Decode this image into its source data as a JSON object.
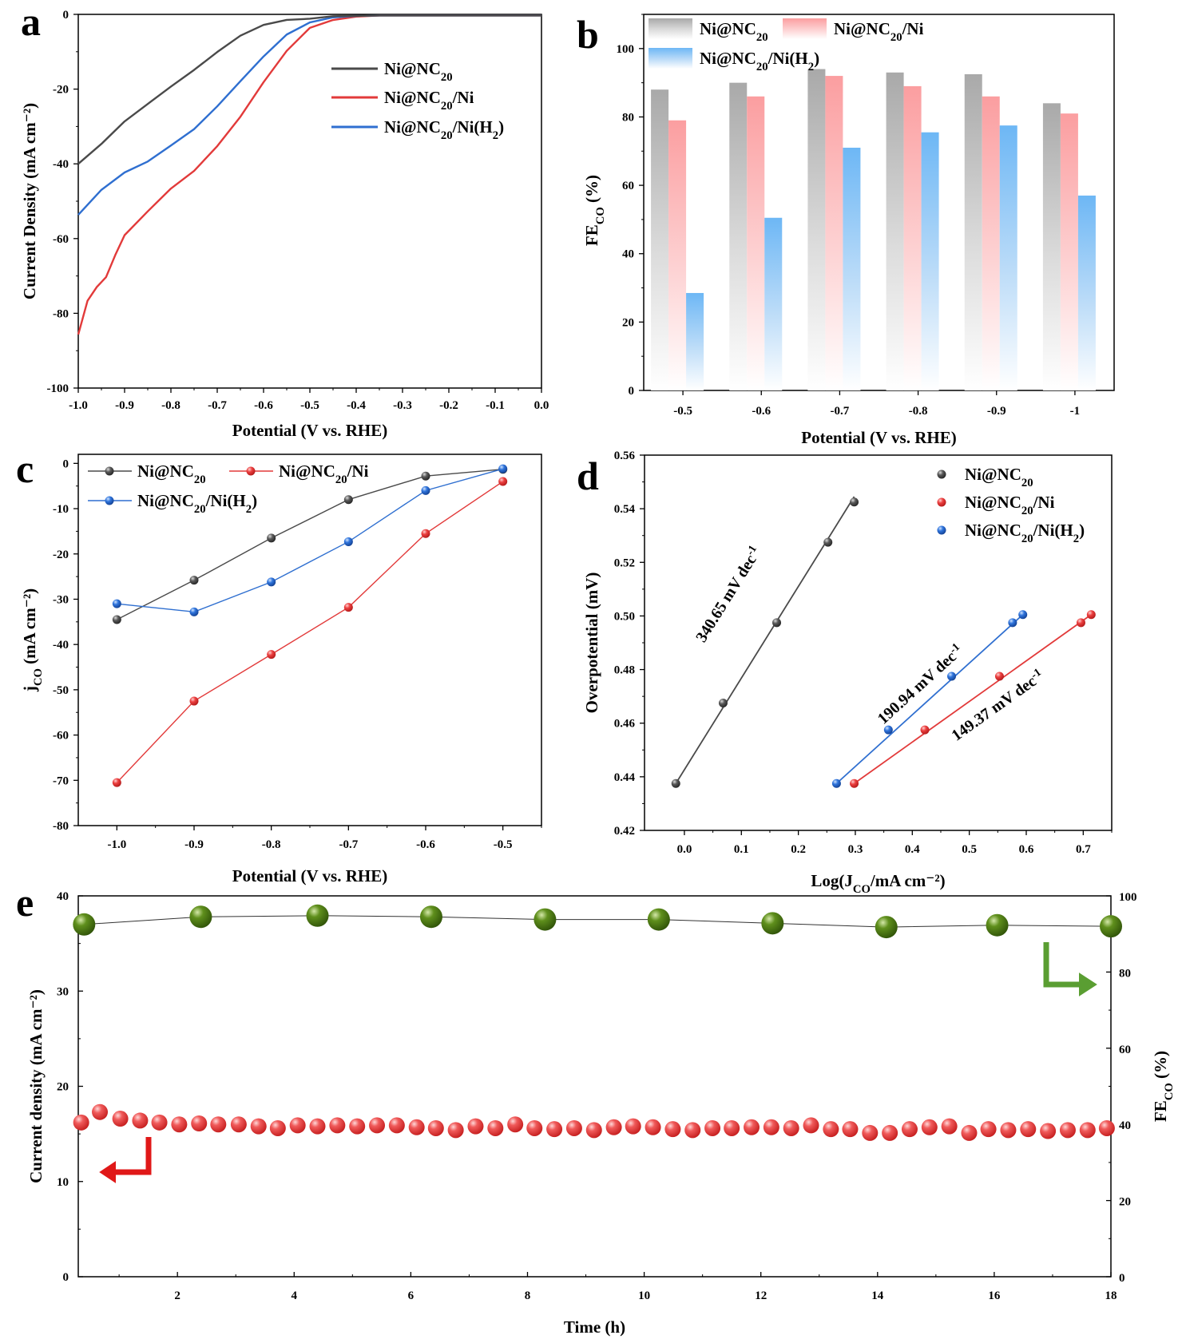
{
  "colors": {
    "ni_nc20": "#4a4a4a",
    "ni_nc20_ni": "#e23a3a",
    "ni_nc20_ni_h2": "#2f6fd0",
    "bar_gray": "#a9a9a9",
    "bar_red": "#fb9ea0",
    "bar_blue": "#6db7f5",
    "fe_green": "#4a7a0c",
    "arrow_red": "#e01818",
    "arrow_green": "#5a9e32"
  },
  "chart_data": [
    {
      "panel": "a",
      "type": "line",
      "xlabel": "Potential (V vs. RHE)",
      "ylabel": "Current Density (mA cm⁻²)",
      "xlim": [
        -1.0,
        0.0
      ],
      "ylim": [
        -100,
        0
      ],
      "xticks": [
        "-1.0",
        "-0.9",
        "-0.8",
        "-0.7",
        "-0.6",
        "-0.5",
        "-0.4",
        "-0.3",
        "-0.2",
        "-0.1",
        "0.0"
      ],
      "yticks": [
        "0",
        "-20",
        "-40",
        "-60",
        "-80",
        "-100"
      ],
      "legend_position": "upper-right",
      "series": [
        {
          "name": "Ni@NC20",
          "label_main": "Ni@NC",
          "label_sub": "20",
          "label_tail": "",
          "x": [
            -1.0,
            -0.95,
            -0.9,
            -0.85,
            -0.8,
            -0.75,
            -0.7,
            -0.65,
            -0.6,
            -0.55,
            -0.5,
            -0.45,
            -0.4,
            -0.35,
            -0.3,
            0.0
          ],
          "y": [
            -40,
            -35,
            -29,
            -24,
            -19,
            -14.5,
            -10,
            -6,
            -3.2,
            -1.6,
            -0.9,
            -0.5,
            -0.4,
            -0.3,
            -0.3,
            -0.3
          ]
        },
        {
          "name": "Ni@NC20/Ni",
          "label_main": "Ni@NC",
          "label_sub": "20",
          "label_tail": "/Ni",
          "x": [
            -1.0,
            -0.98,
            -0.96,
            -0.94,
            -0.92,
            -0.9,
            -0.85,
            -0.8,
            -0.75,
            -0.7,
            -0.65,
            -0.6,
            -0.55,
            -0.5,
            -0.45,
            -0.4,
            -0.35,
            -0.3,
            0.0
          ],
          "y": [
            -86,
            -77,
            -73,
            -70,
            -64,
            -59,
            -53,
            -47,
            -42,
            -35,
            -27,
            -18,
            -10,
            -4,
            -1.5,
            -0.6,
            -0.3,
            -0.3,
            -0.3
          ]
        },
        {
          "name": "Ni@NC20/Ni(H2)",
          "label_main": "Ni@NC",
          "label_sub": "20",
          "label_tail": "/Ni(H",
          "label_sub2": "2",
          "label_end": ")",
          "x": [
            -1.0,
            -0.95,
            -0.9,
            -0.85,
            -0.8,
            -0.75,
            -0.7,
            -0.65,
            -0.6,
            -0.55,
            -0.5,
            -0.45,
            -0.4,
            -0.35,
            -0.3,
            0.0
          ],
          "y": [
            -54,
            -47,
            -42,
            -39,
            -35,
            -31,
            -25,
            -18,
            -11,
            -5,
            -2,
            -0.8,
            -0.4,
            -0.3,
            -0.3,
            -0.3
          ]
        }
      ]
    },
    {
      "panel": "b",
      "type": "bar",
      "xlabel": "Potential (V vs. RHE)",
      "ylabel_main": "FE",
      "ylabel_sub": "CO",
      "ylabel_tail": " (%)",
      "ylim": [
        0,
        110
      ],
      "yticks": [
        "0",
        "20",
        "40",
        "60",
        "80",
        "100"
      ],
      "categories": [
        "-0.5",
        "-0.6",
        "-0.7",
        "-0.8",
        "-0.9",
        "-1"
      ],
      "legend_position": "top",
      "series": [
        {
          "name": "Ni@NC20",
          "label_main": "Ni@NC",
          "label_sub": "20",
          "label_tail": "",
          "values": [
            88,
            90,
            94,
            93,
            92.5,
            84
          ]
        },
        {
          "name": "Ni@NC20/Ni",
          "label_main": "Ni@NC",
          "label_sub": "20",
          "label_tail": "/Ni",
          "values": [
            79,
            86,
            92,
            89,
            86,
            81
          ]
        },
        {
          "name": "Ni@NC20/Ni(H2)",
          "label_main": "Ni@NC",
          "label_sub": "20",
          "label_tail": "/Ni(H",
          "label_sub2": "2",
          "label_end": ")",
          "values": [
            28.5,
            50.5,
            71,
            75.5,
            77.5,
            57
          ]
        }
      ]
    },
    {
      "panel": "c",
      "type": "line",
      "xlabel": "Potential (V vs. RHE)",
      "ylabel_main": "j",
      "ylabel_sub": "CO",
      "ylabel_tail": " (mA cm⁻²)",
      "xlim": [
        -1.05,
        -0.45
      ],
      "ylim": [
        -80,
        2
      ],
      "xticks": [
        "-1.0",
        "-0.9",
        "-0.8",
        "-0.7",
        "-0.6",
        "-0.5"
      ],
      "yticks": [
        "0",
        "-10",
        "-20",
        "-30",
        "-40",
        "-50",
        "-60",
        "-70",
        "-80"
      ],
      "legend_position": "upper-left",
      "x": [
        -1.0,
        -0.9,
        -0.8,
        -0.7,
        -0.6,
        -0.5
      ],
      "series": [
        {
          "name": "Ni@NC20",
          "label_main": "Ni@NC",
          "label_sub": "20",
          "label_tail": "",
          "values": [
            -34.5,
            -25.8,
            -16.5,
            -8,
            -2.8,
            -1.3
          ]
        },
        {
          "name": "Ni@NC20/Ni",
          "label_main": "Ni@NC",
          "label_sub": "20",
          "label_tail": "/Ni",
          "values": [
            -70.5,
            -52.5,
            -42.2,
            -31.8,
            -15.5,
            -4
          ]
        },
        {
          "name": "Ni@NC20/Ni(H2)",
          "label_main": "Ni@NC",
          "label_sub": "20",
          "label_tail": "/Ni(H",
          "label_sub2": "2",
          "label_end": ")",
          "values": [
            -31,
            -32.8,
            -26.2,
            -17.3,
            -6,
            -1.2
          ]
        }
      ]
    },
    {
      "panel": "d",
      "type": "scatter",
      "xlabel_main": "Log(J",
      "xlabel_sub": "CO",
      "xlabel_tail": "/mA cm⁻²)",
      "ylabel": "Overpotential (mV)",
      "xlim": [
        -0.07,
        0.75
      ],
      "ylim": [
        0.42,
        0.56
      ],
      "xticks": [
        "0.0",
        "0.1",
        "0.2",
        "0.3",
        "0.4",
        "0.5",
        "0.6",
        "0.7"
      ],
      "yticks": [
        "0.42",
        "0.44",
        "0.46",
        "0.48",
        "0.50",
        "0.52",
        "0.54",
        "0.56"
      ],
      "legend_position": "upper-right",
      "series": [
        {
          "name": "Ni@NC20",
          "label_main": "Ni@NC",
          "label_sub": "20",
          "label_tail": "",
          "x": [
            -0.015,
            0.068,
            0.162,
            0.252,
            0.298
          ],
          "y": [
            0.4375,
            0.4675,
            0.4975,
            0.5275,
            0.5425
          ]
        },
        {
          "name": "Ni@NC20/Ni",
          "label_main": "Ni@NC",
          "label_sub": "20",
          "label_tail": "/Ni",
          "x": [
            0.298,
            0.422,
            0.553,
            0.696,
            0.714
          ],
          "y": [
            0.4375,
            0.4575,
            0.4775,
            0.4975,
            0.5005
          ]
        },
        {
          "name": "Ni@NC20/Ni(H2)",
          "label_main": "Ni@NC",
          "label_sub": "20",
          "label_tail": "/Ni(H",
          "label_sub2": "2",
          "label_end": ")",
          "x": [
            0.267,
            0.358,
            0.469,
            0.576,
            0.594
          ],
          "y": [
            0.4375,
            0.4575,
            0.4775,
            0.4975,
            0.5005
          ]
        }
      ],
      "fits": [
        {
          "series": "Ni@NC20",
          "x": [
            -0.015,
            0.298
          ],
          "y": [
            0.4375,
            0.5445
          ]
        },
        {
          "series": "Ni@NC20/Ni(H2)",
          "x": [
            0.267,
            0.594
          ],
          "y": [
            0.4375,
            0.5005
          ]
        },
        {
          "series": "Ni@NC20/Ni",
          "x": [
            0.298,
            0.714
          ],
          "y": [
            0.4375,
            0.5005
          ]
        }
      ],
      "annotations": [
        {
          "text_main": "340.65 mV dec",
          "text_sup": "-1",
          "at_x": 0.085,
          "at_y": 0.507,
          "slope_of": "Ni@NC20"
        },
        {
          "text_main": "190.94 mV dec",
          "text_sup": "-1",
          "at_x": 0.42,
          "at_y": 0.473,
          "slope_of": "Ni@NC20/Ni(H2)"
        },
        {
          "text_main": "149.37 mV dec",
          "text_sup": "-1",
          "at_x": 0.555,
          "at_y": 0.465,
          "slope_of": "Ni@NC20/Ni"
        }
      ]
    },
    {
      "panel": "e",
      "type": "scatter",
      "xlabel": "Time (h)",
      "ylabel_left": "Current density (mA cm⁻²)",
      "ylabel_right_main": "FE",
      "ylabel_right_sub": "CO",
      "ylabel_right_tail": " (%)",
      "xlim": [
        0.3,
        18
      ],
      "ylim_left": [
        0,
        40
      ],
      "ylim_right": [
        0,
        100
      ],
      "xticks": [
        "2",
        "4",
        "6",
        "8",
        "10",
        "12",
        "14",
        "16",
        "18"
      ],
      "yticks_left": [
        "0",
        "10",
        "20",
        "30",
        "40"
      ],
      "yticks_right": [
        "0",
        "20",
        "40",
        "60",
        "80",
        "100"
      ],
      "series": [
        {
          "name": "Current density",
          "axis": "left",
          "x": [
            0.35,
            0.67,
            1.02,
            1.36,
            1.69,
            2.03,
            2.37,
            2.7,
            3.05,
            3.39,
            3.72,
            4.06,
            4.4,
            4.74,
            5.08,
            5.42,
            5.76,
            6.1,
            6.43,
            6.77,
            7.11,
            7.45,
            7.79,
            8.12,
            8.46,
            8.8,
            9.14,
            9.48,
            9.81,
            10.15,
            10.49,
            10.83,
            11.17,
            11.5,
            11.84,
            12.18,
            12.52,
            12.86,
            13.2,
            13.53,
            13.87,
            14.21,
            14.55,
            14.89,
            15.23,
            15.57,
            15.9,
            16.24,
            16.58,
            16.92,
            17.26,
            17.6,
            17.93
          ],
          "values": [
            16.2,
            17.3,
            16.6,
            16.4,
            16.2,
            16.0,
            16.1,
            16.0,
            16.0,
            15.8,
            15.6,
            15.9,
            15.8,
            15.9,
            15.8,
            15.9,
            15.9,
            15.7,
            15.6,
            15.4,
            15.8,
            15.6,
            16.0,
            15.6,
            15.5,
            15.6,
            15.4,
            15.7,
            15.8,
            15.7,
            15.5,
            15.4,
            15.6,
            15.6,
            15.7,
            15.7,
            15.6,
            15.9,
            15.5,
            15.5,
            15.1,
            15.1,
            15.5,
            15.7,
            15.8,
            15.1,
            15.5,
            15.4,
            15.5,
            15.3,
            15.4,
            15.4,
            15.6
          ]
        },
        {
          "name": "FE CO",
          "axis": "right",
          "x": [
            0.4,
            2.4,
            4.4,
            6.35,
            8.3,
            10.25,
            12.2,
            14.15,
            16.05,
            18.0
          ],
          "values": [
            92.5,
            94.5,
            94.8,
            94.5,
            93.8,
            93.8,
            92.8,
            91.8,
            92.3,
            92.0
          ]
        }
      ]
    }
  ],
  "panels": {
    "a": "a",
    "b": "b",
    "c": "c",
    "d": "d",
    "e": "e"
  }
}
